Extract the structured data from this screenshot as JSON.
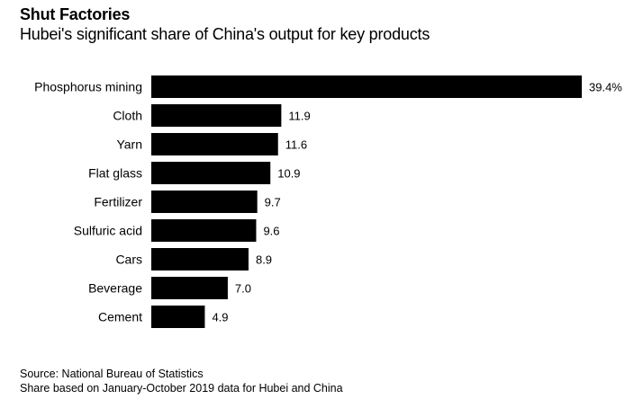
{
  "header": {
    "title": "Shut Factories",
    "subtitle": "Hubei's significant share of China's output for key products"
  },
  "chart_data": {
    "type": "bar",
    "orientation": "horizontal",
    "title": "Shut Factories",
    "subtitle": "Hubei's significant share of China's output for key products",
    "categories": [
      "Phosphorus mining",
      "Cloth",
      "Yarn",
      "Flat glass",
      "Fertilizer",
      "Sulfuric acid",
      "Cars",
      "Beverage",
      "Cement"
    ],
    "values": [
      39.4,
      11.9,
      11.6,
      10.9,
      9.7,
      9.6,
      8.9,
      7.0,
      4.9
    ],
    "value_labels": [
      "39.4%",
      "11.9",
      "11.6",
      "10.9",
      "9.7",
      "9.6",
      "8.9",
      "7.0",
      "4.9"
    ],
    "xlim": [
      0,
      39.4
    ],
    "grid": false,
    "bar_color": "#000000"
  },
  "footer": {
    "source": "Source: National Bureau of Statistics",
    "note": "Share based on January-October 2019 data for Hubei and China"
  }
}
